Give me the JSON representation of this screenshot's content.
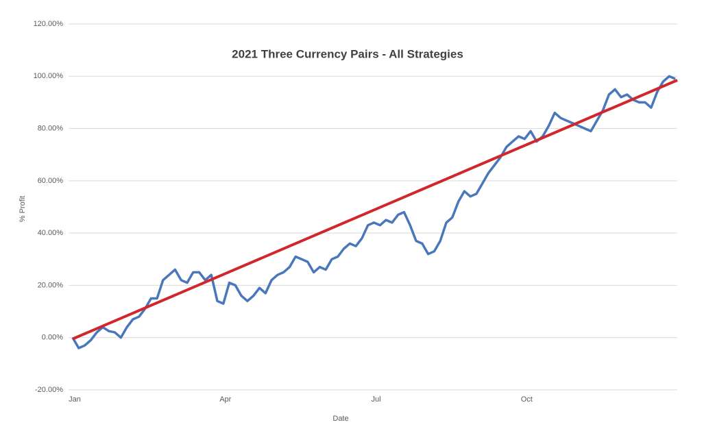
{
  "chart_data": {
    "type": "line",
    "title": "2021  Three Currency Pairs - All Strategies",
    "x_label": "Date",
    "y_label": "% Profit",
    "categories": [
      "Jan",
      null,
      null,
      null,
      null,
      null,
      null,
      null,
      null,
      null,
      null,
      null,
      null,
      null,
      null,
      null,
      null,
      null,
      null,
      null,
      null,
      null,
      null,
      null,
      null,
      "Apr",
      null,
      null,
      null,
      null,
      null,
      null,
      null,
      null,
      null,
      null,
      null,
      null,
      null,
      null,
      null,
      null,
      null,
      null,
      null,
      null,
      null,
      null,
      null,
      null,
      "Jul",
      null,
      null,
      null,
      null,
      null,
      null,
      null,
      null,
      null,
      null,
      null,
      null,
      null,
      null,
      null,
      null,
      null,
      null,
      null,
      null,
      null,
      null,
      null,
      null,
      "Oct",
      null,
      null,
      null,
      null,
      null,
      null,
      null,
      null,
      null,
      null,
      null,
      null,
      null,
      null,
      null,
      null,
      null,
      null,
      null,
      null,
      null,
      null,
      null,
      null,
      null
    ],
    "series": [
      {
        "color": "#4a76bb",
        "values": [
          0,
          -4,
          -3,
          -1,
          2,
          4,
          2.5,
          2,
          0,
          4,
          7,
          8,
          11,
          15,
          15,
          22,
          24,
          26,
          22,
          21,
          25,
          25,
          22,
          24,
          14,
          13,
          21,
          20,
          16,
          14,
          16,
          19,
          17,
          22,
          24,
          25,
          27,
          31,
          30,
          29,
          25,
          27,
          26,
          30,
          31,
          34,
          36,
          35,
          38,
          43,
          44,
          43,
          45,
          44,
          47,
          48,
          43,
          37,
          36,
          32,
          33,
          37,
          44,
          46,
          52,
          56,
          54,
          55,
          59,
          63,
          66,
          69,
          73,
          75,
          77,
          76,
          79,
          75,
          77,
          81,
          86,
          84,
          83,
          82,
          81,
          80,
          79,
          83,
          87,
          93,
          95,
          92,
          93,
          91,
          90,
          90,
          88,
          94,
          98,
          100,
          99
        ]
      }
    ],
    "trend": {
      "color": "#d1262c",
      "values": [
        -0.5,
        98.5
      ]
    },
    "ylim": [
      -20,
      120
    ],
    "yticks": [
      {
        "value": -20,
        "label": "-20.00%"
      },
      {
        "value": 0,
        "label": "0.00%"
      },
      {
        "value": 20,
        "label": "20.00%"
      },
      {
        "value": 40,
        "label": "40.00%"
      },
      {
        "value": 60,
        "label": "60.00%"
      },
      {
        "value": 80,
        "label": "80.00%"
      },
      {
        "value": 100,
        "label": "100.00%"
      },
      {
        "value": 120,
        "label": "120.00%"
      }
    ],
    "grid": true
  }
}
